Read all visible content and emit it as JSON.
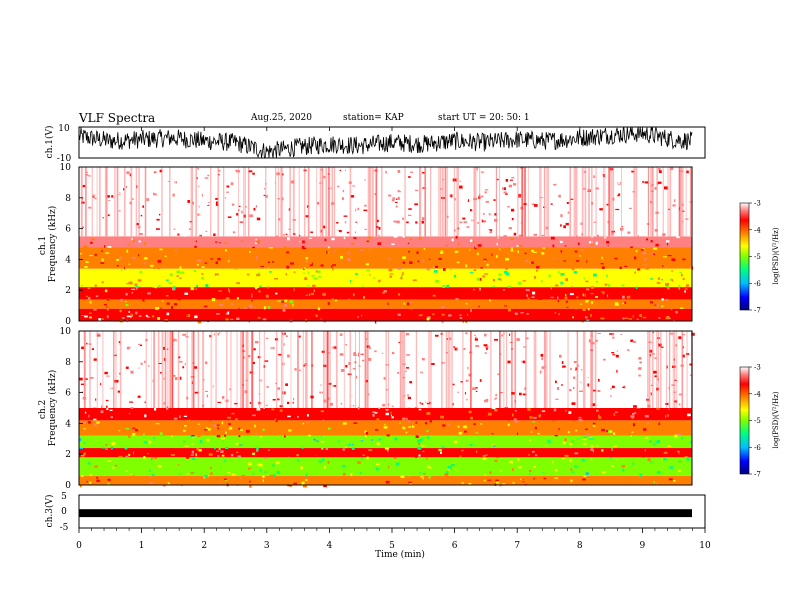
{
  "header": {
    "title": "VLF Spectra",
    "date": "Aug.25, 2020",
    "station": "station= KAP",
    "start": "start  UT =   20: 50: 1"
  },
  "chart_data": [
    {
      "type": "line",
      "panel": "ch1-waveform",
      "ylabel": "ch.1(V)",
      "ylim": [
        -10,
        10
      ],
      "yticks": [
        "10",
        "-10"
      ],
      "x_unit": "min",
      "xlim": [
        0,
        9.8
      ],
      "trend_x": [
        0,
        0.5,
        1,
        1.5,
        2,
        2.5,
        3,
        3.5,
        4,
        4.5,
        5,
        5.5,
        6,
        6.5,
        7,
        7.5,
        8,
        8.5,
        9,
        9.5,
        9.8
      ],
      "trend_y": [
        4,
        1,
        2,
        3,
        1,
        0,
        -6,
        -3,
        -1,
        -2,
        0,
        -1,
        1,
        0,
        2,
        1,
        3,
        5,
        6,
        2,
        1
      ],
      "amplitude": 6,
      "color": "#000000"
    },
    {
      "type": "heatmap",
      "panel": "ch1-spectrogram",
      "ylabel": "ch.1\nFrequency  (kHz)",
      "ylim": [
        0,
        10
      ],
      "yticks": [
        "0",
        "2",
        "4",
        "6",
        "8",
        "10"
      ],
      "xlim": [
        0,
        9.8
      ],
      "colorbar": {
        "label": "log(PSD)(V²/Hz)",
        "range": [
          -7,
          -3
        ],
        "ticks": [
          "-3",
          "-4",
          "-5",
          "-6",
          "-7"
        ],
        "colors": [
          "#000080",
          "#0000ff",
          "#00bfff",
          "#00ff80",
          "#80ff00",
          "#ffff00",
          "#ff8000",
          "#ff0000",
          "#ff8080",
          "#ffffff"
        ]
      },
      "bands": [
        {
          "from_khz": 0,
          "to_khz": 0.8,
          "log_psd": -3.8
        },
        {
          "from_khz": 0.8,
          "to_khz": 1.4,
          "log_psd": -4.3
        },
        {
          "from_khz": 1.4,
          "to_khz": 2.2,
          "log_psd": -3.9
        },
        {
          "from_khz": 2.2,
          "to_khz": 3.4,
          "log_psd": -4.9
        },
        {
          "from_khz": 3.4,
          "to_khz": 4.8,
          "log_psd": -4.2
        },
        {
          "from_khz": 4.8,
          "to_khz": 5.5,
          "log_psd": -3.6
        },
        {
          "from_khz": 5.5,
          "to_khz": 10,
          "log_psd": -3.2
        }
      ]
    },
    {
      "type": "heatmap",
      "panel": "ch2-spectrogram",
      "ylabel": "ch.2\nFrequency  (kHz)",
      "ylim": [
        0,
        10
      ],
      "yticks": [
        "0",
        "2",
        "4",
        "6",
        "8",
        "10"
      ],
      "xlim": [
        0,
        9.8
      ],
      "colorbar": {
        "label": "log(PSD)(V²/Hz)",
        "range": [
          -7,
          -3
        ],
        "ticks": [
          "-3",
          "-4",
          "-5",
          "-6",
          "-7"
        ],
        "colors": [
          "#000080",
          "#0000ff",
          "#00bfff",
          "#00ff80",
          "#80ff00",
          "#ffff00",
          "#ff8000",
          "#ff0000",
          "#ff8080",
          "#ffffff"
        ]
      },
      "bands": [
        {
          "from_khz": 0,
          "to_khz": 0.6,
          "log_psd": -4.3
        },
        {
          "from_khz": 0.6,
          "to_khz": 1.8,
          "log_psd": -5.1
        },
        {
          "from_khz": 1.8,
          "to_khz": 2.4,
          "log_psd": -4.0
        },
        {
          "from_khz": 2.4,
          "to_khz": 3.2,
          "log_psd": -5.3
        },
        {
          "from_khz": 3.2,
          "to_khz": 4.2,
          "log_psd": -4.3
        },
        {
          "from_khz": 4.2,
          "to_khz": 5.0,
          "log_psd": -3.7
        },
        {
          "from_khz": 5.0,
          "to_khz": 10,
          "log_psd": -3.2
        }
      ]
    },
    {
      "type": "line",
      "panel": "ch3-waveform",
      "ylabel": "ch.3(V)",
      "ylim": [
        -5,
        5
      ],
      "yticks": [
        "5",
        "0",
        "-5"
      ],
      "xlim": [
        0,
        9.8
      ],
      "level": -0.5,
      "amplitude": 0.4,
      "color": "#000000"
    },
    {
      "type": "axis",
      "panel": "time-axis",
      "xlabel": "Time  (min)",
      "xlim": [
        0,
        10
      ],
      "xticks": [
        "0",
        "1",
        "2",
        "3",
        "4",
        "5",
        "6",
        "7",
        "8",
        "9",
        "10"
      ]
    }
  ]
}
